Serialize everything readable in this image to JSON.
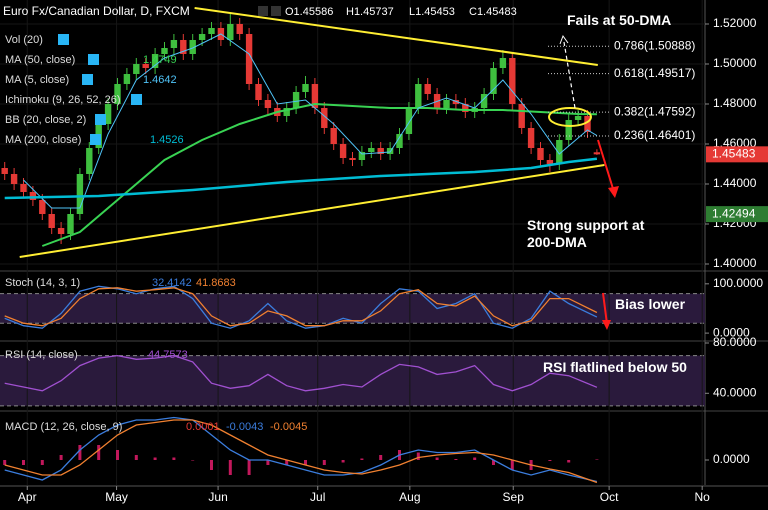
{
  "chart_data": [
    {
      "type": "candlestick",
      "title": "Euro Fx/Canadian Dollar, D, FXCM",
      "ohlc_labels": [
        "O1.45586",
        "H1.45737",
        "L1.45453",
        "C1.45483"
      ],
      "indicators": [
        "Vol (20)",
        "MA (50, close)",
        "MA (5, close)",
        "Ichimoku (9, 26, 52, 26)",
        "BB (20, close, 2)",
        "MA (200, close)"
      ],
      "xlim": [
        -0.5,
        74.5
      ],
      "ylim": [
        1.397,
        1.532
      ],
      "grid": true,
      "yticks": [
        {
          "value": 1.52,
          "label": "1.52000"
        },
        {
          "value": 1.5,
          "label": "1.50000"
        },
        {
          "value": 1.48,
          "label": "1.48000"
        },
        {
          "value": 1.46,
          "label": "1.46000"
        },
        {
          "value": 1.44,
          "label": "1.44000"
        },
        {
          "value": 1.42,
          "label": "1.42000"
        },
        {
          "value": 1.4,
          "label": "1.40000"
        }
      ],
      "up_color": "#3fbf3f",
      "down_color": "#e53935",
      "open": [
        1.448,
        1.445,
        1.44,
        1.436,
        1.432,
        1.425,
        1.418,
        1.415,
        1.425,
        1.445,
        1.458,
        1.47,
        1.48,
        1.49,
        1.495,
        1.5,
        1.498,
        1.505,
        1.508,
        1.512,
        1.505,
        1.512,
        1.515,
        1.518,
        1.512,
        1.52,
        1.515,
        1.49,
        1.482,
        1.478,
        1.474,
        1.478,
        1.486,
        1.49,
        1.478,
        1.468,
        1.46,
        1.453,
        1.452,
        1.456,
        1.458,
        1.455,
        1.458,
        1.465,
        1.478,
        1.49,
        1.485,
        1.478,
        1.482,
        1.48,
        1.476,
        1.478,
        1.485,
        1.498,
        1.503,
        1.48,
        1.468,
        1.458,
        1.452,
        1.45,
        1.462,
        1.472,
        1.474,
        1.45586
      ],
      "high": [
        1.451,
        1.448,
        1.443,
        1.439,
        1.435,
        1.428,
        1.421,
        1.428,
        1.448,
        1.461,
        1.473,
        1.483,
        1.493,
        1.498,
        1.503,
        1.503,
        1.508,
        1.511,
        1.515,
        1.515,
        1.515,
        1.518,
        1.521,
        1.521,
        1.525,
        1.523,
        1.518,
        1.493,
        1.485,
        1.481,
        1.481,
        1.489,
        1.494,
        1.493,
        1.481,
        1.471,
        1.463,
        1.456,
        1.459,
        1.461,
        1.461,
        1.461,
        1.468,
        1.481,
        1.493,
        1.493,
        1.488,
        1.485,
        1.485,
        1.483,
        1.481,
        1.488,
        1.501,
        1.507,
        1.506,
        1.483,
        1.471,
        1.461,
        1.455,
        1.465,
        1.475,
        1.477,
        1.477,
        1.45737
      ],
      "low": [
        1.442,
        1.437,
        1.433,
        1.429,
        1.422,
        1.415,
        1.41,
        1.412,
        1.422,
        1.442,
        1.455,
        1.467,
        1.477,
        1.487,
        1.492,
        1.495,
        1.495,
        1.502,
        1.505,
        1.502,
        1.502,
        1.509,
        1.512,
        1.509,
        1.509,
        1.512,
        1.487,
        1.479,
        1.475,
        1.471,
        1.471,
        1.475,
        1.483,
        1.475,
        1.465,
        1.457,
        1.45,
        1.449,
        1.449,
        1.453,
        1.452,
        1.452,
        1.455,
        1.462,
        1.475,
        1.482,
        1.475,
        1.475,
        1.477,
        1.473,
        1.473,
        1.475,
        1.482,
        1.495,
        1.477,
        1.465,
        1.455,
        1.449,
        1.446,
        1.447,
        1.459,
        1.469,
        1.463,
        1.45453
      ],
      "close": [
        1.445,
        1.44,
        1.436,
        1.432,
        1.425,
        1.418,
        1.415,
        1.425,
        1.445,
        1.458,
        1.47,
        1.48,
        1.49,
        1.495,
        1.5,
        1.498,
        1.505,
        1.508,
        1.512,
        1.505,
        1.512,
        1.515,
        1.518,
        1.512,
        1.52,
        1.515,
        1.49,
        1.482,
        1.478,
        1.474,
        1.478,
        1.486,
        1.49,
        1.478,
        1.468,
        1.46,
        1.453,
        1.452,
        1.456,
        1.458,
        1.455,
        1.458,
        1.465,
        1.478,
        1.49,
        1.485,
        1.478,
        1.482,
        1.48,
        1.476,
        1.478,
        1.485,
        1.498,
        1.503,
        1.48,
        1.468,
        1.458,
        1.452,
        1.45,
        1.462,
        1.472,
        1.474,
        1.466,
        1.45483
      ],
      "series": [
        {
          "color": "#39d353",
          "width": 2,
          "x": [
            4,
            8,
            11,
            14,
            17,
            21,
            25,
            29,
            33,
            37,
            41,
            45,
            49,
            53,
            57,
            61,
            63
          ],
          "values": [
            1.409,
            1.416,
            1.428,
            1.44,
            1.452,
            1.462,
            1.47,
            1.476,
            1.48,
            1.479,
            1.478,
            1.478,
            1.477,
            1.477,
            1.476,
            1.475,
            1.4749
          ]
        },
        {
          "color": "#4fc3f7",
          "width": 1,
          "x": [
            2,
            5,
            8,
            11,
            14,
            17,
            20,
            23,
            26,
            29,
            32,
            35,
            38,
            41,
            44,
            47,
            50,
            53,
            56,
            59,
            62,
            63
          ],
          "values": [
            1.442,
            1.428,
            1.428,
            1.465,
            1.492,
            1.503,
            1.508,
            1.515,
            1.505,
            1.48,
            1.482,
            1.47,
            1.455,
            1.456,
            1.478,
            1.483,
            1.478,
            1.492,
            1.475,
            1.455,
            1.467,
            1.4642
          ]
        },
        {
          "color": "#00bcd4",
          "width": 2.5,
          "x": [
            0,
            10,
            20,
            30,
            40,
            50,
            56,
            60,
            63
          ],
          "values": [
            1.433,
            1.434,
            1.437,
            1.441,
            1.444,
            1.446,
            1.448,
            1.451,
            1.4526
          ]
        }
      ],
      "trendlines": [
        {
          "color": "#ffee33",
          "x": [
            20.2,
            63.1
          ],
          "values": [
            1.528,
            1.4995
          ]
        },
        {
          "color": "#ffee33",
          "x": [
            1.6,
            63.8
          ],
          "values": [
            1.4035,
            1.4495
          ]
        }
      ],
      "fib_levels": [
        {
          "value": 1.50888,
          "label": "0.786(1.50888)"
        },
        {
          "value": 1.49517,
          "label": "0.618(1.49517)"
        },
        {
          "value": 1.47592,
          "label": "0.382(1.47592)"
        },
        {
          "value": 1.46401,
          "label": "0.236(1.46401)"
        }
      ],
      "price_tags": [
        {
          "value": 1.45483,
          "label": "1.45483",
          "color": "#e53935"
        },
        {
          "value": 1.42494,
          "label": "1.42494",
          "color": "#2e7d32"
        }
      ],
      "annotations": [
        "Fails at 50-DMA",
        "Strong support at 200-DMA"
      ]
    },
    {
      "type": "line",
      "title": "Stoch (14, 3, 1)",
      "ylim": [
        -14,
        124
      ],
      "yticks": [
        {
          "value": 100,
          "label": "100.0000"
        },
        {
          "value": 0,
          "label": "0.0000"
        }
      ],
      "levels": [
        80,
        20
      ],
      "band_color": "#2a1a3c",
      "annotations": [
        "Bias lower"
      ],
      "series": [
        {
          "color": "#3b7ddd",
          "x": [
            0,
            2,
            4,
            6,
            8,
            10,
            12,
            14,
            16,
            18,
            20,
            22,
            24,
            26,
            28,
            30,
            32,
            34,
            36,
            38,
            40,
            42,
            44,
            46,
            48,
            50,
            52,
            54,
            56,
            58,
            60,
            63
          ],
          "values": [
            30,
            15,
            10,
            40,
            85,
            95,
            90,
            80,
            90,
            95,
            70,
            20,
            10,
            25,
            60,
            25,
            10,
            15,
            30,
            20,
            60,
            90,
            85,
            50,
            60,
            80,
            20,
            10,
            30,
            85,
            60,
            32.4142
          ]
        },
        {
          "color": "#f08030",
          "x": [
            0,
            2,
            4,
            6,
            8,
            10,
            12,
            14,
            16,
            18,
            20,
            22,
            24,
            26,
            28,
            30,
            32,
            34,
            36,
            38,
            40,
            42,
            44,
            46,
            48,
            50,
            52,
            54,
            56,
            58,
            60,
            63
          ],
          "values": [
            35,
            20,
            15,
            30,
            70,
            90,
            92,
            85,
            88,
            92,
            80,
            35,
            15,
            20,
            45,
            35,
            15,
            15,
            25,
            25,
            45,
            80,
            88,
            60,
            55,
            75,
            35,
            15,
            25,
            70,
            70,
            41.8683
          ]
        }
      ]
    },
    {
      "type": "line",
      "title": "RSI (14, close)",
      "ylim": [
        26.7,
        80.8
      ],
      "yticks": [
        {
          "value": 80,
          "label": "80.0000"
        },
        {
          "value": 40,
          "label": "40.0000"
        }
      ],
      "levels": [
        70,
        30
      ],
      "band_color": "#2a1a3c",
      "annotations": [
        "RSI flatlined below 50"
      ],
      "series": [
        {
          "color": "#a050d0",
          "x": [
            0,
            2,
            4,
            6,
            8,
            10,
            12,
            14,
            16,
            18,
            20,
            22,
            24,
            26,
            28,
            30,
            32,
            34,
            36,
            38,
            40,
            42,
            44,
            46,
            48,
            50,
            52,
            54,
            56,
            58,
            60,
            63
          ],
          "values": [
            48,
            45,
            42,
            50,
            62,
            68,
            70,
            67,
            68,
            70,
            65,
            48,
            44,
            46,
            55,
            46,
            42,
            44,
            47,
            45,
            55,
            63,
            61,
            55,
            57,
            62,
            47,
            42,
            47,
            56,
            54,
            44.7573
          ]
        }
      ]
    },
    {
      "type": "line",
      "title": "MACD (12, 26, close, 9)",
      "ylim": [
        -0.005,
        0.0096
      ],
      "yticks": [
        {
          "value": 0,
          "label": "0.0000"
        }
      ],
      "xticks": [
        {
          "value": 2.4,
          "label": "Apr"
        },
        {
          "value": 11.9,
          "label": "May"
        },
        {
          "value": 22.7,
          "label": "Jun"
        },
        {
          "value": 33.3,
          "label": "Jul"
        },
        {
          "value": 43.1,
          "label": "Aug"
        },
        {
          "value": 54.1,
          "label": "Sep"
        },
        {
          "value": 64.3,
          "label": "Oct"
        },
        {
          "value": 74.2,
          "label": "No"
        }
      ],
      "series": [
        {
          "style": "histogram",
          "color": "#c2185b",
          "x": [
            0,
            2,
            4,
            6,
            8,
            10,
            12,
            14,
            16,
            18,
            20,
            22,
            24,
            26,
            28,
            30,
            32,
            34,
            36,
            38,
            40,
            42,
            44,
            46,
            48,
            50,
            52,
            54,
            56,
            58,
            60,
            63
          ],
          "values": [
            -0.001,
            -0.001,
            -0.001,
            0.001,
            0.003,
            0.003,
            0.002,
            0.001,
            0.0005,
            0.0005,
            0,
            -0.002,
            -0.003,
            -0.003,
            -0.001,
            -0.001,
            -0.001,
            -0.001,
            -0.0005,
            0.0003,
            0.001,
            0.002,
            0.0015,
            0.0005,
            0.0002,
            0.0005,
            -0.001,
            -0.002,
            -0.002,
            -0.0002,
            -0.0005,
            0.0001
          ]
        },
        {
          "color": "#3b7ddd",
          "x": [
            0,
            2,
            4,
            6,
            8,
            10,
            12,
            14,
            16,
            18,
            20,
            22,
            24,
            26,
            28,
            30,
            32,
            34,
            36,
            38,
            40,
            42,
            44,
            46,
            48,
            50,
            52,
            54,
            56,
            58,
            60,
            63
          ],
          "values": [
            -0.002,
            -0.003,
            -0.004,
            -0.002,
            0.002,
            0.005,
            0.007,
            0.008,
            0.008,
            0.0085,
            0.008,
            0.005,
            0.002,
            0,
            0,
            -0.001,
            -0.002,
            -0.003,
            -0.003,
            -0.0025,
            -0.001,
            0.001,
            0.002,
            0.0015,
            0.0015,
            0.002,
            0,
            -0.002,
            -0.003,
            -0.002,
            -0.003,
            -0.0043
          ]
        },
        {
          "color": "#f08030",
          "x": [
            0,
            2,
            4,
            6,
            8,
            10,
            12,
            14,
            16,
            18,
            20,
            22,
            24,
            26,
            28,
            30,
            32,
            34,
            36,
            38,
            40,
            42,
            44,
            46,
            48,
            50,
            52,
            54,
            56,
            58,
            60,
            63
          ],
          "values": [
            -0.001,
            -0.002,
            -0.003,
            -0.003,
            -0.001,
            0.002,
            0.005,
            0.007,
            0.0075,
            0.008,
            0.008,
            0.007,
            0.005,
            0.003,
            0.001,
            0,
            -0.001,
            -0.002,
            -0.0025,
            -0.0028,
            -0.002,
            -0.001,
            0.0005,
            0.001,
            0.0013,
            0.0015,
            0.001,
            0,
            -0.001,
            -0.0018,
            -0.0025,
            -0.0045
          ]
        }
      ]
    }
  ]
}
